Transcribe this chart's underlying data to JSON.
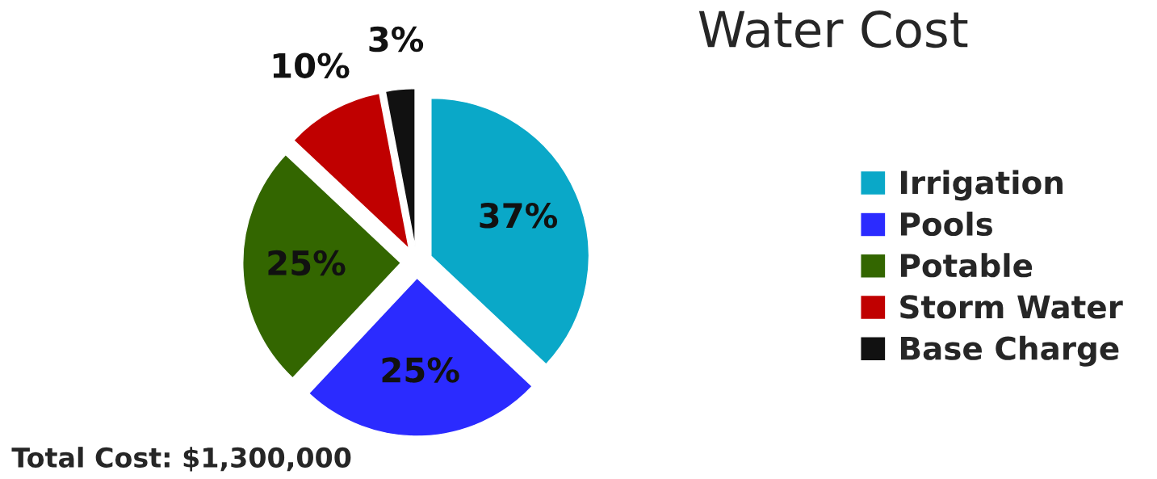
{
  "chart_data": {
    "type": "pie",
    "title": "Water Cost",
    "categories": [
      "Irrigation",
      "Pools",
      "Potable",
      "Storm Water",
      "Base Charge"
    ],
    "values": [
      37,
      25,
      25,
      10,
      3
    ],
    "colors": [
      "#0aa8c8",
      "#2b2bff",
      "#336600",
      "#c00000",
      "#111111"
    ],
    "value_labels": [
      "37%",
      "25%",
      "25%",
      "10%",
      "3%"
    ],
    "legend": "right",
    "annotations": [
      "Total Cost: $1,300,000"
    ]
  }
}
